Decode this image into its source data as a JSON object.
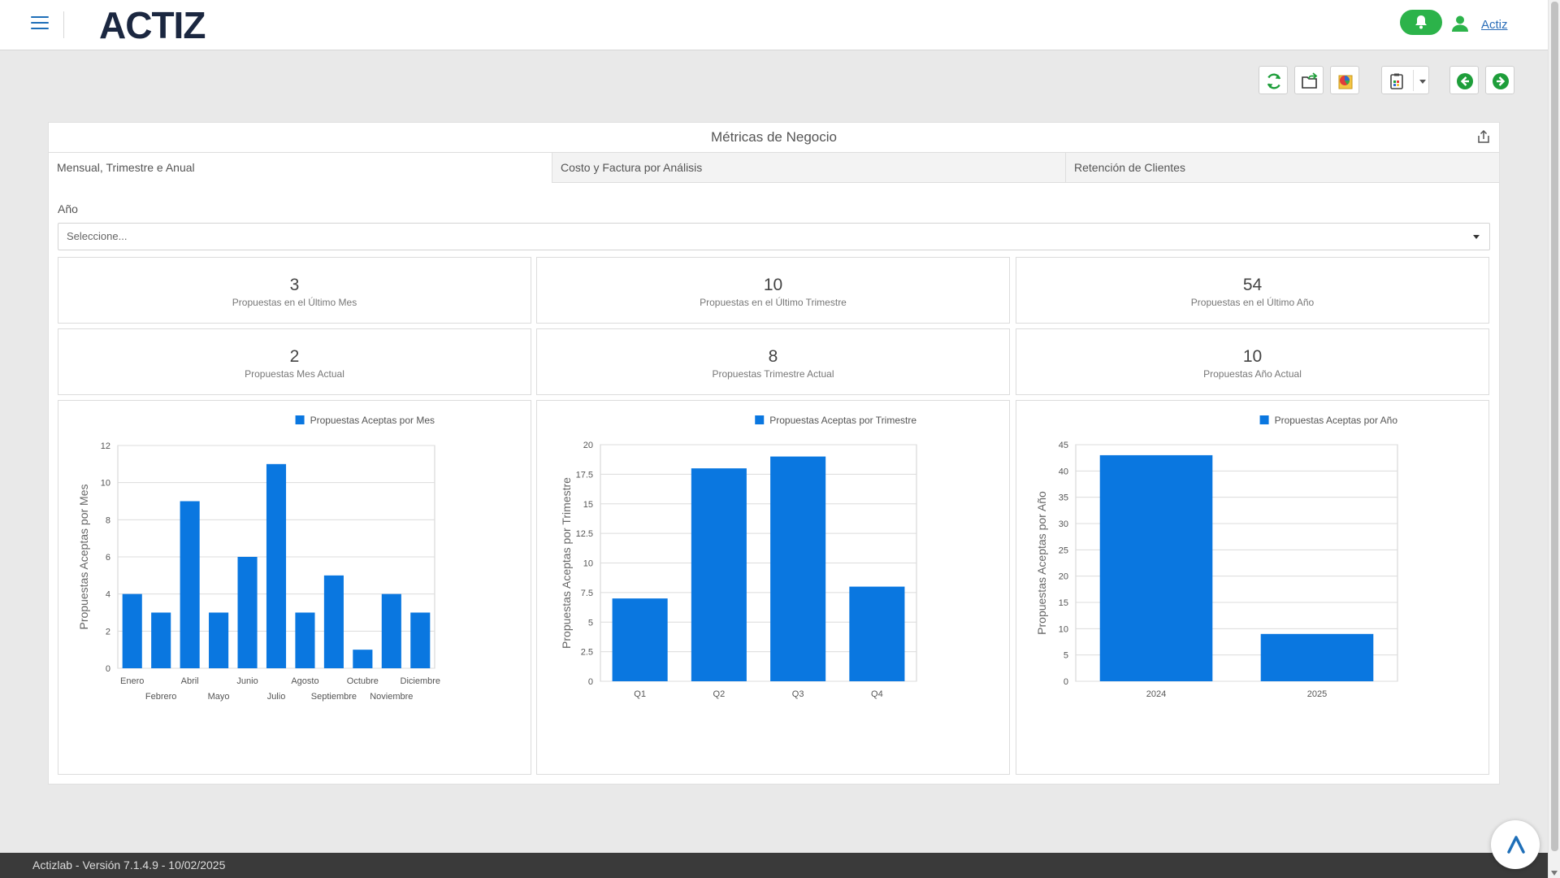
{
  "app": {
    "logo": "ACTIZ",
    "user": "Actiz"
  },
  "card": {
    "title": "Métricas de Negocio",
    "tabs": [
      {
        "label": "Mensual, Trimestre e Anual",
        "active": true
      },
      {
        "label": "Costo y Factura por Análisis",
        "active": false
      },
      {
        "label": "Retención de Clientes",
        "active": false
      }
    ],
    "year_field": {
      "label": "Año",
      "placeholder": "Seleccione..."
    }
  },
  "metrics": [
    {
      "value": "3",
      "label": "Propuestas en el Último Mes"
    },
    {
      "value": "10",
      "label": "Propuestas en el Último Trimestre"
    },
    {
      "value": "54",
      "label": "Propuestas en el Último Año"
    },
    {
      "value": "2",
      "label": "Propuestas Mes Actual"
    },
    {
      "value": "8",
      "label": "Propuestas Trimestre Actual"
    },
    {
      "value": "10",
      "label": "Propuestas Año Actual"
    }
  ],
  "colors": {
    "bar": "#0a77e0",
    "accent": "#2cb34a",
    "link": "#2a6db8"
  },
  "toolbar_icons": [
    "refresh-icon",
    "export-folder-icon",
    "chart-report-icon",
    "clipboard-icon",
    "back-arrow-icon",
    "forward-arrow-icon"
  ],
  "chart_data": [
    {
      "type": "bar",
      "legend": "Propuestas Aceptas por Mes",
      "ylabel": "Propuestas Aceptas por Mes",
      "xlabel": "",
      "categories": [
        "Enero",
        "Febrero",
        "Abril",
        "Mayo",
        "Junio",
        "Julio",
        "Agosto",
        "Septiembre",
        "Octubre",
        "Noviembre",
        "Diciembre"
      ],
      "values": [
        4,
        3,
        9,
        3,
        6,
        11,
        3,
        5,
        1,
        4,
        3
      ],
      "ylim": [
        0,
        12
      ],
      "yticks": [
        "0",
        "2",
        "4",
        "6",
        "8",
        "10",
        "12"
      ],
      "ytick_values": [
        0,
        2,
        4,
        6,
        8,
        10,
        12
      ],
      "legend_position": "top-right",
      "grid": true
    },
    {
      "type": "bar",
      "legend": "Propuestas Aceptas por Trimestre",
      "ylabel": "Propuestas Aceptas por Trimestre",
      "xlabel": "",
      "categories": [
        "Q1",
        "Q2",
        "Q3",
        "Q4"
      ],
      "values": [
        7,
        18,
        19,
        8
      ],
      "ylim": [
        0,
        20
      ],
      "yticks": [
        "0",
        "2.5",
        "5",
        "7.5",
        "10",
        "12.5",
        "15",
        "17.5",
        "20"
      ],
      "ytick_values": [
        0,
        2.5,
        5,
        7.5,
        10,
        12.5,
        15,
        17.5,
        20
      ],
      "legend_position": "top-right",
      "grid": true
    },
    {
      "type": "bar",
      "legend": "Propuestas Aceptas por Año",
      "ylabel": "Propuestas Aceptas por Año",
      "xlabel": "",
      "categories": [
        "2024",
        "2025"
      ],
      "values": [
        43,
        9
      ],
      "ylim": [
        0,
        45
      ],
      "yticks": [
        "0",
        "5",
        "10",
        "15",
        "20",
        "25",
        "30",
        "35",
        "40",
        "45"
      ],
      "ytick_values": [
        0,
        5,
        10,
        15,
        20,
        25,
        30,
        35,
        40,
        45
      ],
      "legend_position": "top-right",
      "grid": true
    }
  ],
  "footer": {
    "version": "Actizlab - Versión 7.1.4.9 - 10/02/2025"
  }
}
